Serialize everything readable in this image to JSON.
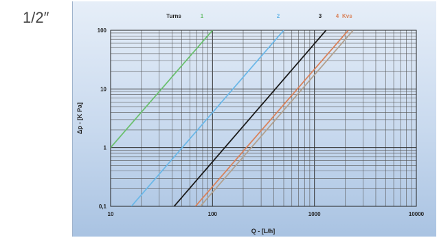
{
  "size_label": "1/2″",
  "chart_data": {
    "type": "line",
    "xscale": "log",
    "yscale": "log",
    "xlabel": "Q - [L/h]",
    "ylabel": "Δp - [K Pa]",
    "xlim": [
      10,
      10000
    ],
    "ylim": [
      0.1,
      100
    ],
    "x_ticks": [
      "10",
      "100",
      "1000",
      "10000"
    ],
    "y_ticks": [
      "0,1",
      "1",
      "10",
      "100"
    ],
    "legend_title": "Turns",
    "legend_kvs": "Kvs",
    "grid": true,
    "series": [
      {
        "name": "1",
        "color": "#6cc070",
        "points": [
          [
            10,
            1
          ],
          [
            100,
            100
          ]
        ]
      },
      {
        "name": "2",
        "color": "#6cb8e8",
        "points": [
          [
            16,
            0.1
          ],
          [
            500,
            100
          ]
        ]
      },
      {
        "name": "3",
        "color": "#1a1a1a",
        "points": [
          [
            42,
            0.1
          ],
          [
            1300,
            100
          ]
        ]
      },
      {
        "name": "4",
        "color": "#d9825a",
        "points": [
          [
            68,
            0.1
          ],
          [
            2150,
            100
          ]
        ]
      },
      {
        "name": "",
        "color": "#b2a18f",
        "points": [
          [
            76,
            0.1
          ],
          [
            2400,
            100
          ]
        ]
      }
    ]
  }
}
